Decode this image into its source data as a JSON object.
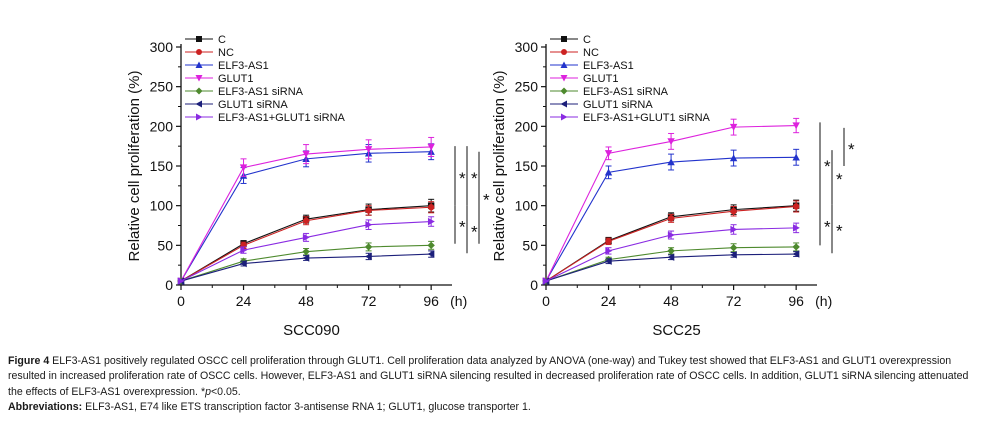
{
  "chart_data": [
    {
      "type": "line",
      "title": "SCC090",
      "xlabel": "SCC090",
      "ylabel": "Relative cell proliferation (%)",
      "x_unit": "(h)",
      "x": [
        0,
        24,
        48,
        72,
        96
      ],
      "xlim": [
        0,
        104
      ],
      "ylim": [
        0,
        300
      ],
      "xticks": [
        "0",
        "24",
        "48",
        "72",
        "96"
      ],
      "yticks": [
        "0",
        "50",
        "100",
        "150",
        "200",
        "250",
        "300"
      ],
      "legend_position": "top-left",
      "series": [
        {
          "name": "C",
          "color": "#111111",
          "marker": "square",
          "values": [
            5,
            52,
            83,
            95,
            100
          ],
          "errors": [
            0,
            4,
            5,
            7,
            8
          ]
        },
        {
          "name": "NC",
          "color": "#cc2222",
          "marker": "circle",
          "values": [
            5,
            50,
            81,
            94,
            98
          ],
          "errors": [
            0,
            4,
            5,
            6,
            7
          ]
        },
        {
          "name": "ELF3-AS1",
          "color": "#2233cc",
          "marker": "triangle-up",
          "values": [
            5,
            138,
            159,
            166,
            168
          ],
          "errors": [
            0,
            10,
            10,
            11,
            10
          ]
        },
        {
          "name": "GLUT1",
          "color": "#dd22dd",
          "marker": "triangle-down",
          "values": [
            5,
            148,
            165,
            171,
            174
          ],
          "errors": [
            0,
            11,
            12,
            12,
            12
          ]
        },
        {
          "name": "ELF3-AS1 siRNA",
          "color": "#4e8a2e",
          "marker": "diamond",
          "values": [
            5,
            30,
            42,
            48,
            50
          ],
          "errors": [
            0,
            3,
            4,
            5,
            5
          ]
        },
        {
          "name": "GLUT1 siRNA",
          "color": "#1c1f7a",
          "marker": "triangle-left",
          "values": [
            5,
            27,
            34,
            36,
            39
          ],
          "errors": [
            0,
            3,
            3,
            4,
            4
          ]
        },
        {
          "name": "ELF3-AS1+GLUT1 siRNA",
          "color": "#8a2be2",
          "marker": "triangle-right",
          "values": [
            5,
            44,
            60,
            76,
            80
          ],
          "errors": [
            0,
            4,
            5,
            6,
            6
          ]
        }
      ],
      "significance": [
        "*",
        "*",
        "*",
        "*",
        "*"
      ]
    },
    {
      "type": "line",
      "title": "SCC25",
      "xlabel": "SCC25",
      "ylabel": "Relative cell proliferation (%)",
      "x_unit": "(h)",
      "x": [
        0,
        24,
        48,
        72,
        96
      ],
      "xlim": [
        0,
        104
      ],
      "ylim": [
        0,
        300
      ],
      "xticks": [
        "0",
        "24",
        "48",
        "72",
        "96"
      ],
      "yticks": [
        "0",
        "50",
        "100",
        "150",
        "200",
        "250",
        "300"
      ],
      "legend_position": "top-left",
      "series": [
        {
          "name": "C",
          "color": "#111111",
          "marker": "square",
          "values": [
            5,
            56,
            86,
            95,
            100
          ],
          "errors": [
            0,
            4,
            5,
            6,
            7
          ]
        },
        {
          "name": "NC",
          "color": "#cc2222",
          "marker": "circle",
          "values": [
            5,
            55,
            84,
            93,
            99
          ],
          "errors": [
            0,
            4,
            5,
            6,
            7
          ]
        },
        {
          "name": "ELF3-AS1",
          "color": "#2233cc",
          "marker": "triangle-up",
          "values": [
            5,
            142,
            155,
            160,
            161
          ],
          "errors": [
            0,
            8,
            10,
            10,
            10
          ]
        },
        {
          "name": "GLUT1",
          "color": "#dd22dd",
          "marker": "triangle-down",
          "values": [
            5,
            166,
            181,
            199,
            201
          ],
          "errors": [
            0,
            8,
            10,
            10,
            9
          ]
        },
        {
          "name": "ELF3-AS1 siRNA",
          "color": "#4e8a2e",
          "marker": "diamond",
          "values": [
            5,
            32,
            43,
            47,
            48
          ],
          "errors": [
            0,
            3,
            4,
            5,
            5
          ]
        },
        {
          "name": "GLUT1 siRNA",
          "color": "#1c1f7a",
          "marker": "triangle-left",
          "values": [
            5,
            30,
            35,
            38,
            39
          ],
          "errors": [
            0,
            3,
            3,
            3,
            3
          ]
        },
        {
          "name": "ELF3-AS1+GLUT1 siRNA",
          "color": "#8a2be2",
          "marker": "triangle-right",
          "values": [
            5,
            43,
            63,
            70,
            72
          ],
          "errors": [
            0,
            4,
            5,
            6,
            6
          ]
        }
      ],
      "significance": [
        "*",
        "*",
        "*",
        "*",
        "*"
      ]
    }
  ],
  "caption": {
    "figure_label": "Figure 4",
    "figure_text": "ELF3-AS1 positively regulated OSCC cell proliferation through GLUT1. Cell proliferation data analyzed by ANOVA (one-way) and Tukey test showed that ELF3-AS1 and GLUT1 overexpression resulted in increased proliferation rate of OSCC cells. However, ELF3-AS1 and GLUT1 siRNA silencing resulted in decreased proliferation rate of OSCC cells. In addition, GLUT1 siRNA silencing attenuated the effects of ELF3-AS1 overexpression. *",
    "p_symbol": "p",
    "p_text": "<0.05.",
    "abbrev_label": "Abbreviations:",
    "abbrev_text": "ELF3-AS1, E74 like ETS transcription factor 3-antisense RNA 1; GLUT1, glucose transporter 1."
  }
}
